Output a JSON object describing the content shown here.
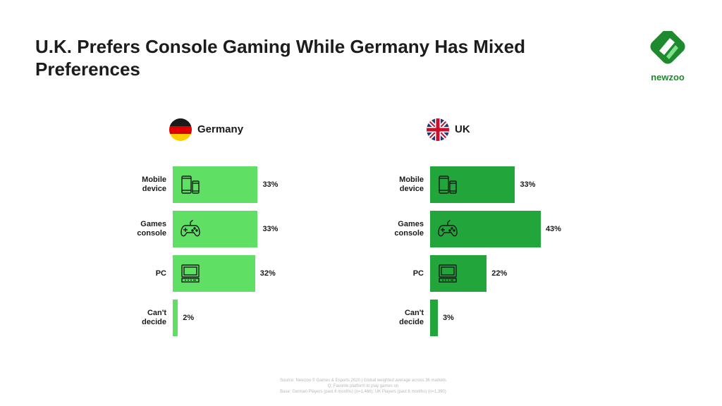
{
  "title": "U.K. Prefers Console Gaming While Germany Has Mixed Preferences",
  "brand": {
    "name": "newzoo",
    "color": "#1e8a2e"
  },
  "colors": {
    "germany_bar": "#5fe064",
    "uk_bar": "#22a53a"
  },
  "categories": [
    {
      "line1": "Mobile",
      "line2": "device",
      "icon": "mobile-device-icon"
    },
    {
      "line1": "Games",
      "line2": "console",
      "icon": "gamepad-icon"
    },
    {
      "line1": "PC",
      "line2": "",
      "icon": "pc-icon"
    },
    {
      "line1": "Can't",
      "line2": "decide",
      "icon": ""
    }
  ],
  "chart_data": [
    {
      "type": "bar",
      "orientation": "horizontal",
      "title": "Germany",
      "categories": [
        "Mobile device",
        "Games console",
        "PC",
        "Can't decide"
      ],
      "values": [
        33,
        33,
        32,
        2
      ],
      "value_labels": [
        "33%",
        "33%",
        "32%",
        "2%"
      ],
      "unit": "%",
      "color": "#5fe064"
    },
    {
      "type": "bar",
      "orientation": "horizontal",
      "title": "UK",
      "categories": [
        "Mobile device",
        "Games console",
        "PC",
        "Can't decide"
      ],
      "values": [
        33,
        43,
        22,
        3
      ],
      "value_labels": [
        "33%",
        "43%",
        "22%",
        "3%"
      ],
      "unit": "%",
      "color": "#22a53a"
    }
  ],
  "source_lines": [
    "Source: Newzoo © Games & Esports 2020 | Global weighted average across 36 markets",
    "Q: Favorite platform to play games on",
    "Base: German Players (past 6 months) (n=1,466); UK Players (past 6 months) (n=1,390)"
  ]
}
